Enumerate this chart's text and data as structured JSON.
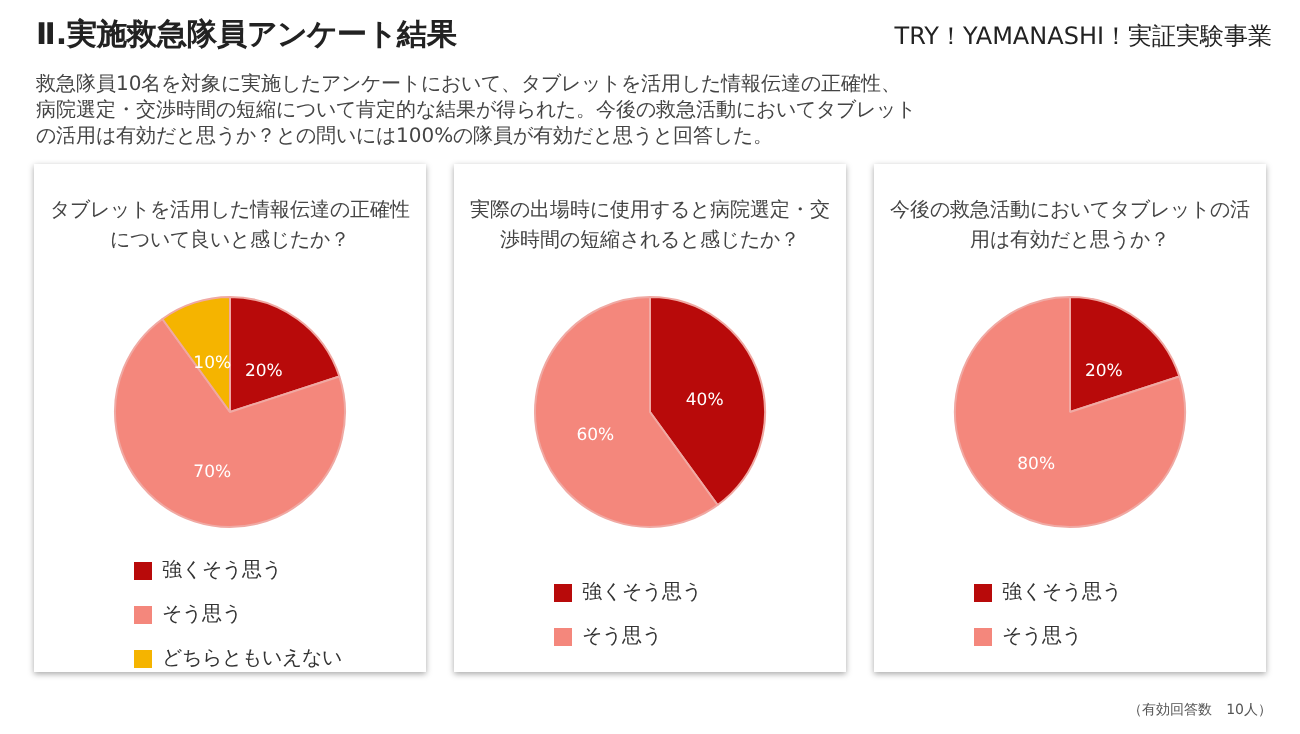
{
  "chart_data": [
    {
      "type": "pie",
      "title": "タブレットを活用した情報伝達の正確性について良いと感じたか？",
      "categories": [
        "強くそう思う",
        "そう思う",
        "どちらともいえない"
      ],
      "values": [
        20,
        70,
        10
      ],
      "value_labels": [
        "20%",
        "70%",
        "10%"
      ],
      "colors": [
        "#b80a0a",
        "#f4877c",
        "#f5b400"
      ],
      "legend": "bottom",
      "annotations": [
        "Ⅱ.実施救急隊員アンケート結果",
        "TRY！YAMANASHI！実証実験事業",
        "救急隊員10名を対象に実施したアンケートにおいて、タブレットを活用した情報伝達の正確性、病院選定・交渉時間の短縮について肯定的な結果が得られた。今後の救急活動においてタブレットの活用は有効だと思うか？との問いには100%の隊員が有効だと思うと回答した。"
      ]
    },
    {
      "type": "pie",
      "title": "実際の出場時に使用すると病院選定・交渉時間の短縮されると感じたか？",
      "categories": [
        "強くそう思う",
        "そう思う"
      ],
      "values": [
        40,
        60
      ],
      "value_labels": [
        "40%",
        "60%"
      ],
      "colors": [
        "#b80a0a",
        "#f4877c"
      ],
      "legend": "bottom"
    },
    {
      "type": "pie",
      "title": "今後の救急活動においてタブレットの活用は有効だと思うか？",
      "categories": [
        "強くそう思う",
        "そう思う"
      ],
      "values": [
        20,
        80
      ],
      "value_labels": [
        "20%",
        "80%"
      ],
      "colors": [
        "#b80a0a",
        "#f4877c"
      ],
      "legend": "bottom",
      "annotations": [
        "（有効回答数　10人）"
      ]
    }
  ]
}
